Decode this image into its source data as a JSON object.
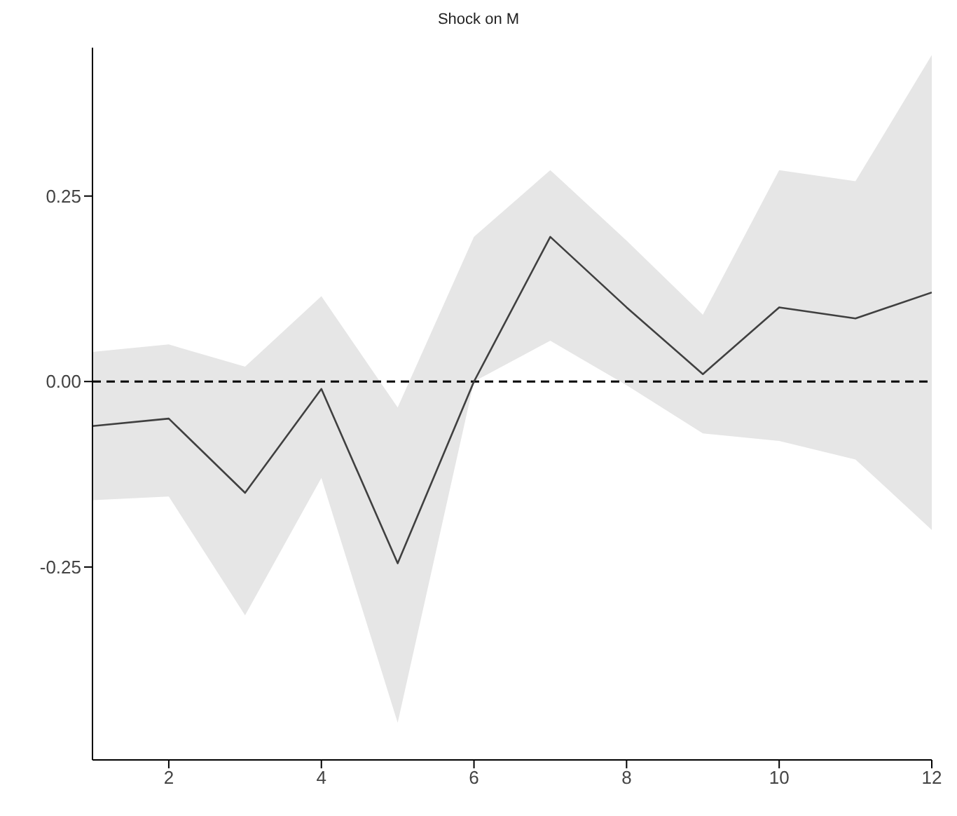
{
  "chart_data": {
    "type": "line",
    "title": "Shock on M",
    "x": [
      1,
      2,
      3,
      4,
      5,
      6,
      7,
      8,
      9,
      10,
      11,
      12
    ],
    "series": [
      {
        "color": "#404040",
        "values": [
          -0.06,
          -0.05,
          -0.15,
          -0.01,
          -0.245,
          0.0,
          0.195,
          0.1,
          0.01,
          0.1,
          0.085,
          0.12
        ],
        "lower": [
          -0.16,
          -0.155,
          -0.315,
          -0.13,
          -0.46,
          0.0,
          0.055,
          -0.005,
          -0.07,
          -0.08,
          -0.105,
          -0.2
        ],
        "upper": [
          0.04,
          0.05,
          0.02,
          0.115,
          -0.035,
          0.195,
          0.285,
          0.19,
          0.09,
          0.285,
          0.27,
          0.44
        ]
      }
    ],
    "xlim": [
      1,
      12
    ],
    "xticks": [
      2,
      4,
      6,
      8,
      10,
      12
    ],
    "ylim": [
      -0.51,
      0.45
    ],
    "yticks": [
      {
        "value": 0.25,
        "label": "0.25"
      },
      {
        "value": 0,
        "label": "0.00"
      },
      {
        "value": -0.25,
        "label": "-0.25"
      }
    ],
    "ref_lines": [
      {
        "axis": "y",
        "value": 0,
        "color": "#000000",
        "line_style": "dashed"
      }
    ],
    "grid": false,
    "marker": "none",
    "line_style": "solid"
  }
}
